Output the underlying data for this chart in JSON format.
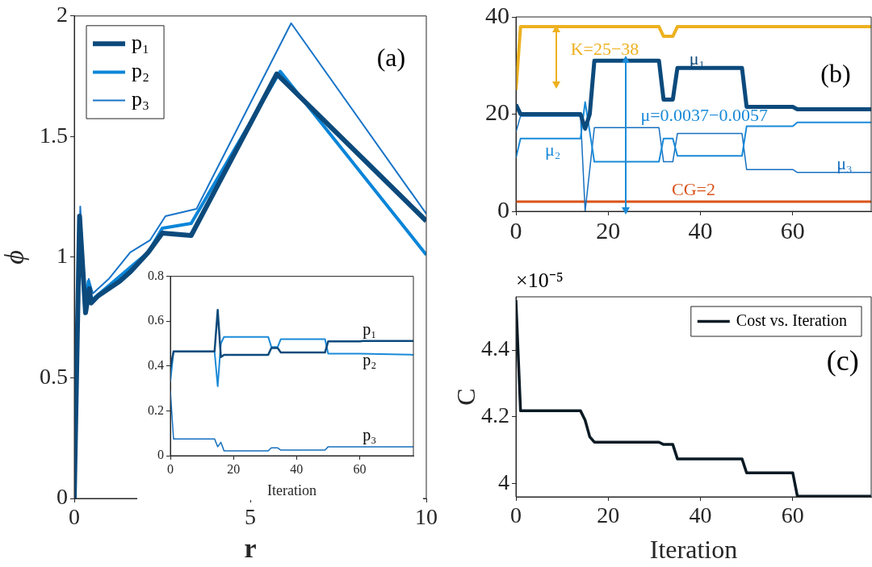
{
  "chart_data": [
    {
      "type": "line",
      "xlabel": "r",
      "ylabel": "ϕ",
      "xlim": [
        0,
        10
      ],
      "ylim": [
        0,
        2
      ],
      "xticks": [
        0,
        5,
        10
      ],
      "yticks": [
        0,
        0.5,
        1,
        1.5,
        2
      ],
      "legend": "top left",
      "annotations": [
        "(a)"
      ],
      "series": [
        {
          "name": "p₁",
          "color": "#0c4a7c",
          "x": [
            0,
            0.15,
            0.32,
            0.43,
            0.48,
            0.68,
            1.29,
            1.6,
            2.1,
            2.5,
            3.32,
            5.75,
            10
          ],
          "values": [
            0,
            1.17,
            0.77,
            0.87,
            0.81,
            0.84,
            0.9,
            0.94,
            1.02,
            1.1,
            1.09,
            1.76,
            1.15
          ]
        },
        {
          "name": "p₂",
          "color": "#0a85d8",
          "x": [
            0,
            0.15,
            0.32,
            0.4,
            0.48,
            1.69,
            2.1,
            2.5,
            3.32,
            5.85,
            10
          ],
          "values": [
            0,
            1.16,
            0.77,
            0.9,
            0.82,
            0.97,
            1.02,
            1.12,
            1.14,
            1.77,
            1.01
          ]
        },
        {
          "name": "p₃",
          "color": "#1874c8",
          "x": [
            0,
            0.17,
            0.32,
            0.41,
            0.53,
            0.98,
            1.59,
            2.15,
            2.59,
            3.47,
            6.16,
            10
          ],
          "values": [
            0,
            1.21,
            0.8,
            0.91,
            0.85,
            0.91,
            1.02,
            1.07,
            1.17,
            1.2,
            1.97,
            1.18
          ]
        }
      ]
    },
    {
      "type": "line",
      "xlabel": "Iteration",
      "xlim": [
        0,
        77
      ],
      "ylim": [
        0,
        0.8
      ],
      "xticks": [
        0,
        20,
        40,
        60
      ],
      "yticks": [
        0,
        0.2,
        0.4,
        0.6,
        0.8
      ],
      "series": [
        {
          "name": "p₁",
          "color": "#0c4a7c",
          "x": [
            0,
            1,
            14,
            15,
            16,
            17,
            31,
            32,
            34,
            35,
            49,
            50,
            60,
            61,
            77
          ],
          "values": [
            0.39,
            0.465,
            0.465,
            0.65,
            0.44,
            0.45,
            0.45,
            0.48,
            0.48,
            0.46,
            0.46,
            0.51,
            0.51,
            0.512,
            0.512
          ]
        },
        {
          "name": "p₂",
          "color": "#1a8ad8",
          "x": [
            0,
            1,
            14,
            15,
            16,
            17,
            31,
            32,
            34,
            35,
            49,
            50,
            60,
            77
          ],
          "values": [
            0.33,
            0.465,
            0.465,
            0.31,
            0.5,
            0.53,
            0.53,
            0.485,
            0.485,
            0.52,
            0.52,
            0.455,
            0.455,
            0.45
          ]
        },
        {
          "name": "p₃",
          "color": "#1670c0",
          "x": [
            0,
            1,
            14,
            15,
            16,
            17,
            31,
            32,
            34,
            35,
            49,
            50,
            77
          ],
          "values": [
            0.29,
            0.075,
            0.075,
            0.04,
            0.06,
            0.022,
            0.022,
            0.035,
            0.035,
            0.025,
            0.025,
            0.04,
            0.04
          ]
        }
      ]
    },
    {
      "type": "line",
      "xlim": [
        0,
        77
      ],
      "ylim": [
        0,
        40
      ],
      "xticks": [
        0,
        20,
        40,
        60
      ],
      "yticks": [
        0,
        20,
        40
      ],
      "annotations": [
        "(b)",
        "K=25−38",
        "μ=0.0037−0.0057"
      ],
      "ref_lines": [
        {
          "axis": "y",
          "value": 2,
          "label": "CG=2",
          "color": "#d95319"
        }
      ],
      "series": [
        {
          "color": "#edb120",
          "x": [
            0,
            1,
            31,
            32,
            34,
            35,
            77
          ],
          "values": [
            25,
            38,
            38,
            36,
            36,
            38,
            38
          ]
        },
        {
          "name": "μ₁",
          "color": "#0c4a7c",
          "x": [
            0,
            1,
            14,
            15,
            16,
            17,
            31,
            32,
            34,
            35,
            49,
            50,
            60,
            61,
            77
          ],
          "values": [
            22,
            20,
            20,
            17,
            20,
            31,
            31,
            23,
            23,
            29.5,
            29.5,
            21.5,
            21.5,
            21,
            21
          ]
        },
        {
          "name": "μ₂",
          "color": "#1a8ad8",
          "x": [
            0,
            1,
            14,
            15,
            17,
            31,
            32,
            34,
            35,
            49,
            50,
            60,
            61,
            77
          ],
          "values": [
            11,
            15,
            15,
            22.5,
            10.2,
            10.2,
            15,
            15,
            11.4,
            11.4,
            17.5,
            17.5,
            18.3,
            18.3
          ]
        },
        {
          "name": "μ₃",
          "color": "#1670c0",
          "x": [
            0,
            1,
            14,
            15,
            17,
            31,
            32,
            34,
            35,
            49,
            50,
            60,
            61,
            77
          ],
          "values": [
            16.3,
            19.6,
            19.6,
            0,
            17.2,
            17.2,
            10.2,
            10.2,
            16,
            16,
            8.6,
            8.6,
            8,
            8
          ]
        }
      ]
    },
    {
      "type": "line",
      "xlabel": "Iteration",
      "ylabel": "C",
      "xlim": [
        0,
        77
      ],
      "ylim": [
        3.96,
        4.56
      ],
      "xticks": [
        0,
        20,
        40,
        60
      ],
      "yticks": [
        4,
        4.2,
        4.4
      ],
      "legend": "top right",
      "annotations": [
        "(c)",
        "×10⁻⁵"
      ],
      "series": [
        {
          "name": "Cost vs. Iteration",
          "color": "#0a1a24",
          "x": [
            0,
            1,
            14,
            15,
            16,
            17,
            31,
            32,
            34,
            35,
            49,
            50,
            60,
            61,
            77
          ],
          "values": [
            4.55,
            4.218,
            4.218,
            4.19,
            4.14,
            4.124,
            4.124,
            4.117,
            4.117,
            4.074,
            4.074,
            4.032,
            4.032,
            3.962,
            3.962
          ]
        }
      ]
    }
  ]
}
